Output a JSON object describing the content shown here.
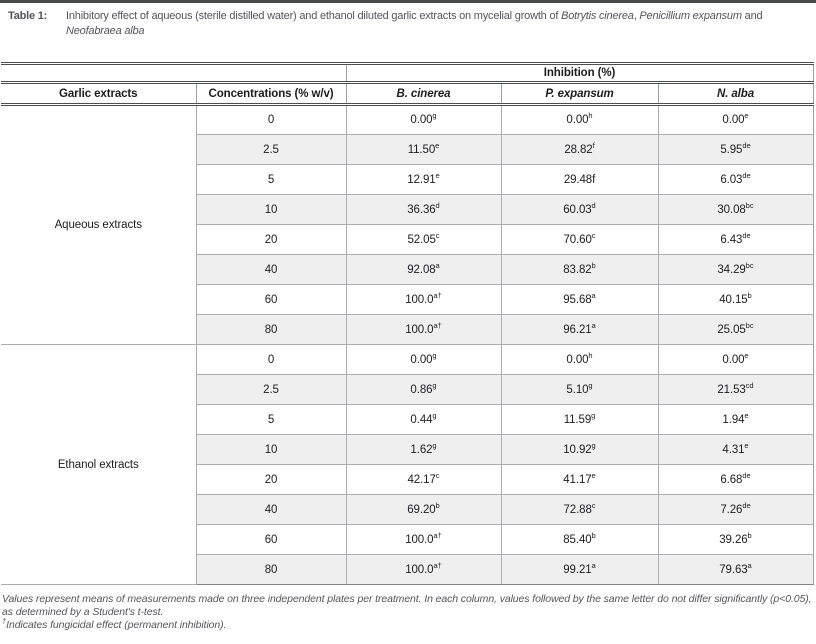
{
  "title": {
    "label": "Table 1:",
    "prefix": "Inhibitory effect of aqueous (sterile distilled water) and ethanol diluted garlic extracts on mycelial growth of ",
    "species": [
      "Botrytis cinerea",
      "Penicillium expansum",
      "Neofabraea alba"
    ],
    "sep1": ", ",
    "sep2": " and "
  },
  "table": {
    "span_header": "Inhibition (%)",
    "columns": [
      "Garlic extracts",
      "Concentrations (% w/v)",
      "B. cinerea",
      "P. expansum",
      "N. alba"
    ],
    "sections": [
      {
        "label": "Aqueous extracts",
        "rows": [
          {
            "concentration": "0",
            "values": [
              {
                "v": "0.00",
                "sup": "g"
              },
              {
                "v": "0.00",
                "sup": "h"
              },
              {
                "v": "0.00",
                "sup": "e"
              }
            ]
          },
          {
            "concentration": "2.5",
            "values": [
              {
                "v": "11.50",
                "sup": "e"
              },
              {
                "v": "28.82",
                "sup": "f"
              },
              {
                "v": "5.95",
                "sup": "de"
              }
            ]
          },
          {
            "concentration": "5",
            "values": [
              {
                "v": "12.91",
                "sup": "e"
              },
              {
                "v": "29.48f",
                "sup": ""
              },
              {
                "v": "6.03",
                "sup": "de"
              }
            ]
          },
          {
            "concentration": "10",
            "values": [
              {
                "v": "36.36",
                "sup": "d"
              },
              {
                "v": "60.03",
                "sup": "d"
              },
              {
                "v": "30.08",
                "sup": "bc"
              }
            ]
          },
          {
            "concentration": "20",
            "values": [
              {
                "v": "52.05",
                "sup": "c"
              },
              {
                "v": "70.60",
                "sup": "c"
              },
              {
                "v": "6.43",
                "sup": "de"
              }
            ]
          },
          {
            "concentration": "40",
            "values": [
              {
                "v": "92.08",
                "sup": "a"
              },
              {
                "v": "83.82",
                "sup": "b"
              },
              {
                "v": "34.29",
                "sup": "bc"
              }
            ]
          },
          {
            "concentration": "60",
            "values": [
              {
                "v": "100.0",
                "sup": "a†"
              },
              {
                "v": "95.68",
                "sup": "a"
              },
              {
                "v": "40.15",
                "sup": "b"
              }
            ]
          },
          {
            "concentration": "80",
            "values": [
              {
                "v": "100.0",
                "sup": "a†"
              },
              {
                "v": "96.21",
                "sup": "a"
              },
              {
                "v": "25.05",
                "sup": "bc"
              }
            ]
          }
        ]
      },
      {
        "label": "Ethanol extracts",
        "rows": [
          {
            "concentration": "0",
            "values": [
              {
                "v": "0.00",
                "sup": "g"
              },
              {
                "v": "0.00",
                "sup": "h"
              },
              {
                "v": "0.00",
                "sup": "e"
              }
            ]
          },
          {
            "concentration": "2.5",
            "values": [
              {
                "v": "0.86",
                "sup": "g"
              },
              {
                "v": "5.10",
                "sup": "g"
              },
              {
                "v": "21.53",
                "sup": "cd"
              }
            ]
          },
          {
            "concentration": "5",
            "values": [
              {
                "v": "0.44",
                "sup": "g"
              },
              {
                "v": "11.59",
                "sup": "g"
              },
              {
                "v": "1.94",
                "sup": "e"
              }
            ]
          },
          {
            "concentration": "10",
            "values": [
              {
                "v": "1.62",
                "sup": "g"
              },
              {
                "v": "10.92",
                "sup": "g"
              },
              {
                "v": "4.31",
                "sup": "e"
              }
            ]
          },
          {
            "concentration": "20",
            "values": [
              {
                "v": "42.17",
                "sup": "c"
              },
              {
                "v": "41.17",
                "sup": "e"
              },
              {
                "v": "6.68",
                "sup": "de"
              }
            ]
          },
          {
            "concentration": "40",
            "values": [
              {
                "v": "69.20",
                "sup": "b"
              },
              {
                "v": "72.88",
                "sup": "c"
              },
              {
                "v": "7.26",
                "sup": "de"
              }
            ]
          },
          {
            "concentration": "60",
            "values": [
              {
                "v": "100.0",
                "sup": "a†"
              },
              {
                "v": "85.40",
                "sup": "b"
              },
              {
                "v": "39.26",
                "sup": "b"
              }
            ]
          },
          {
            "concentration": "80",
            "values": [
              {
                "v": "100.0",
                "sup": "a†"
              },
              {
                "v": "99.21",
                "sup": "a"
              },
              {
                "v": "79.63",
                "sup": "a"
              }
            ]
          }
        ]
      }
    ]
  },
  "footnotes": {
    "note1": "Values represent means of measurements made on three independent plates per treatment. In each column, values followed by the same letter do not differ significantly (p<0.05), as determined by a Student's t-test.",
    "note2_sup": "†",
    "note2": "Indicates fungicidal effect (permanent inhibition)."
  },
  "colors": {
    "top_bar": "#48494b",
    "rule_dark": "#4d4e50",
    "rule_light": "#abadb0",
    "row_shade": "#efeff0",
    "caption_text": "#55565a"
  }
}
